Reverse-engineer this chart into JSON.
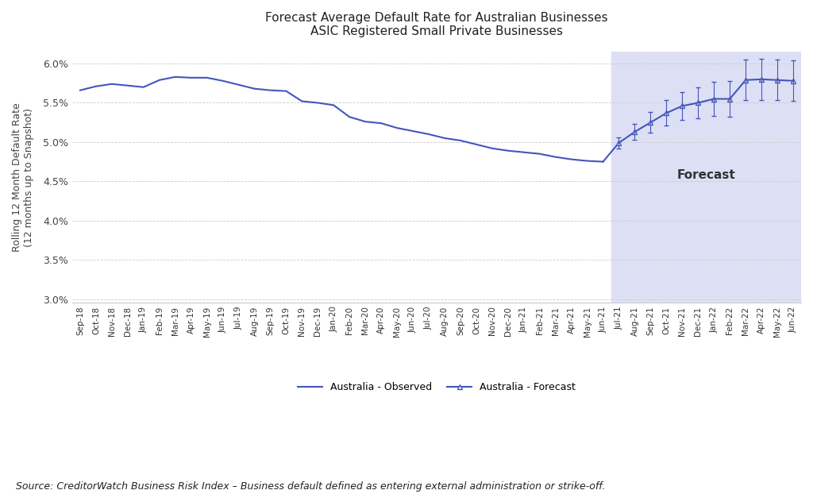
{
  "title_line1": "Forecast Average Default Rate for Australian Businesses",
  "title_line2": "ASIC Registered Small Private Businesses",
  "ylabel": "Rolling 12 Month Default Rate\n(12 months up to Snapshot)",
  "source_text": "Source: CreditorWatch Business Risk Index – Business default defined as entering external administration or strike-off.",
  "forecast_label": "Forecast",
  "legend_observed": "Australia - Observed",
  "legend_forecast": "Australia - Forecast",
  "background_color": "#ffffff",
  "forecast_bg_color": "#dde0f5",
  "line_color": "#4455bb",
  "observed_x": [
    "Sep-18",
    "Oct-18",
    "Nov-18",
    "Dec-18",
    "Jan-19",
    "Feb-19",
    "Mar-19",
    "Apr-19",
    "May-19",
    "Jun-19",
    "Jul-19",
    "Aug-19",
    "Sep-19",
    "Oct-19",
    "Nov-19",
    "Dec-19",
    "Jan-20",
    "Feb-20",
    "Mar-20",
    "Apr-20",
    "May-20",
    "Jun-20",
    "Jul-20",
    "Aug-20",
    "Sep-20",
    "Oct-20",
    "Nov-20",
    "Dec-20",
    "Jan-21",
    "Feb-21",
    "Mar-21",
    "Apr-21",
    "May-21",
    "Jun-21"
  ],
  "observed_y": [
    5.66,
    5.71,
    5.74,
    5.72,
    5.7,
    5.79,
    5.83,
    5.82,
    5.82,
    5.78,
    5.73,
    5.68,
    5.66,
    5.65,
    5.52,
    5.5,
    5.47,
    5.32,
    5.26,
    5.24,
    5.18,
    5.14,
    5.1,
    5.05,
    5.02,
    4.97,
    4.92,
    4.89,
    4.87,
    4.85,
    4.81,
    4.78,
    4.76,
    4.75
  ],
  "forecast_x": [
    "Jul-21",
    "Aug-21",
    "Sep-21",
    "Oct-21",
    "Nov-21",
    "Dec-21",
    "Jan-22",
    "Feb-22",
    "Mar-22",
    "Apr-22",
    "May-22",
    "Jun-22"
  ],
  "forecast_y": [
    4.99,
    5.13,
    5.25,
    5.37,
    5.46,
    5.5,
    5.55,
    5.55,
    5.79,
    5.8,
    5.79,
    5.78
  ],
  "forecast_y_upper": [
    5.06,
    5.23,
    5.38,
    5.53,
    5.64,
    5.7,
    5.77,
    5.78,
    6.05,
    6.06,
    6.05,
    6.04
  ],
  "forecast_y_lower": [
    4.92,
    5.03,
    5.12,
    5.21,
    5.28,
    5.3,
    5.33,
    5.32,
    5.53,
    5.54,
    5.53,
    5.52
  ],
  "ylim": [
    2.95,
    6.15
  ],
  "yticks": [
    3.0,
    3.5,
    4.0,
    4.5,
    5.0,
    5.5,
    6.0
  ],
  "figsize": [
    10.24,
    6.22
  ],
  "dpi": 100
}
